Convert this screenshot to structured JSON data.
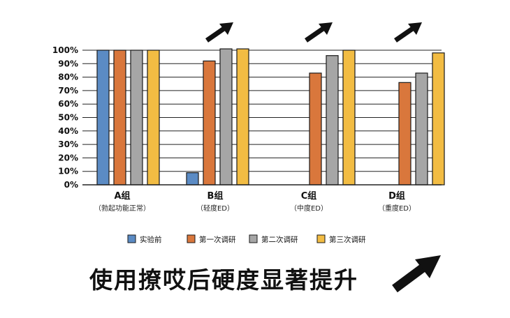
{
  "chart_data": {
    "type": "bar",
    "categories": [
      "A组",
      "B组",
      "C组",
      "D组"
    ],
    "category_sublabels": [
      "（勃起功能正常）",
      "（轻度ED）",
      "（中度ED）",
      "（重度ED）"
    ],
    "series": [
      {
        "name": "实验前",
        "color": "#5b8bc4",
        "values": [
          100,
          9,
          null,
          null
        ]
      },
      {
        "name": "第一次调研",
        "color": "#d9773c",
        "values": [
          100,
          92,
          83,
          76
        ]
      },
      {
        "name": "第二次调研",
        "color": "#a6a6a6",
        "values": [
          100,
          101,
          96,
          83
        ]
      },
      {
        "name": "第三次调研",
        "color": "#f2bc43",
        "values": [
          100,
          101,
          100,
          98
        ]
      }
    ],
    "yticks": [
      "0%",
      "10%",
      "20%",
      "30%",
      "40%",
      "50%",
      "60%",
      "70%",
      "80%",
      "90%",
      "100%"
    ],
    "ylim": [
      0,
      100
    ],
    "grid": true,
    "legend_position": "bottom",
    "trend_arrows": [
      "B组",
      "C组",
      "D组"
    ]
  },
  "headline": "使用撩哎后硬度显著提升",
  "icons": {
    "trend": "arrow-up-right-icon",
    "headline": "arrow-up-right-icon"
  }
}
